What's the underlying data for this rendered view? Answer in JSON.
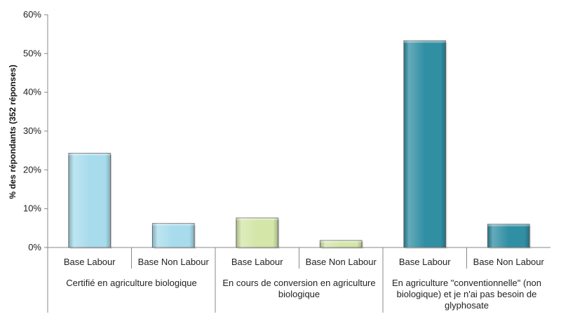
{
  "chart_data": {
    "type": "bar",
    "ylabel": "% des répondants (352 réponses)",
    "ylim": [
      0,
      60
    ],
    "yticks": [
      "0%",
      "10%",
      "20%",
      "30%",
      "40%",
      "50%",
      "60%"
    ],
    "grid": false,
    "legend": "none",
    "groups": [
      {
        "label": "Certifié en agriculture biologique",
        "label_lines": [
          "Certifié en agriculture biologique"
        ],
        "color": "#a8dcec",
        "categories": [
          "Base Labour",
          "Base Non Labour"
        ],
        "values": [
          24.3,
          6.2
        ]
      },
      {
        "label": "En cours de conversion en agriculture biologique",
        "label_lines": [
          "En cours de conversion en agriculture",
          "biologique"
        ],
        "color": "#d4e6a8",
        "categories": [
          "Base Labour",
          "Base Non Labour"
        ],
        "values": [
          7.6,
          1.8
        ]
      },
      {
        "label": "En agriculture \"conventionnelle\" (non biologique) et je n'ai pas besoin de glyphosate",
        "label_lines": [
          "En agriculture \"conventionnelle\" (non",
          "biologique) et je n'ai pas besoin de",
          "glyphosate"
        ],
        "color": "#318fa4",
        "categories": [
          "Base Labour",
          "Base Non Labour"
        ],
        "values": [
          53.3,
          6.0
        ]
      }
    ]
  }
}
